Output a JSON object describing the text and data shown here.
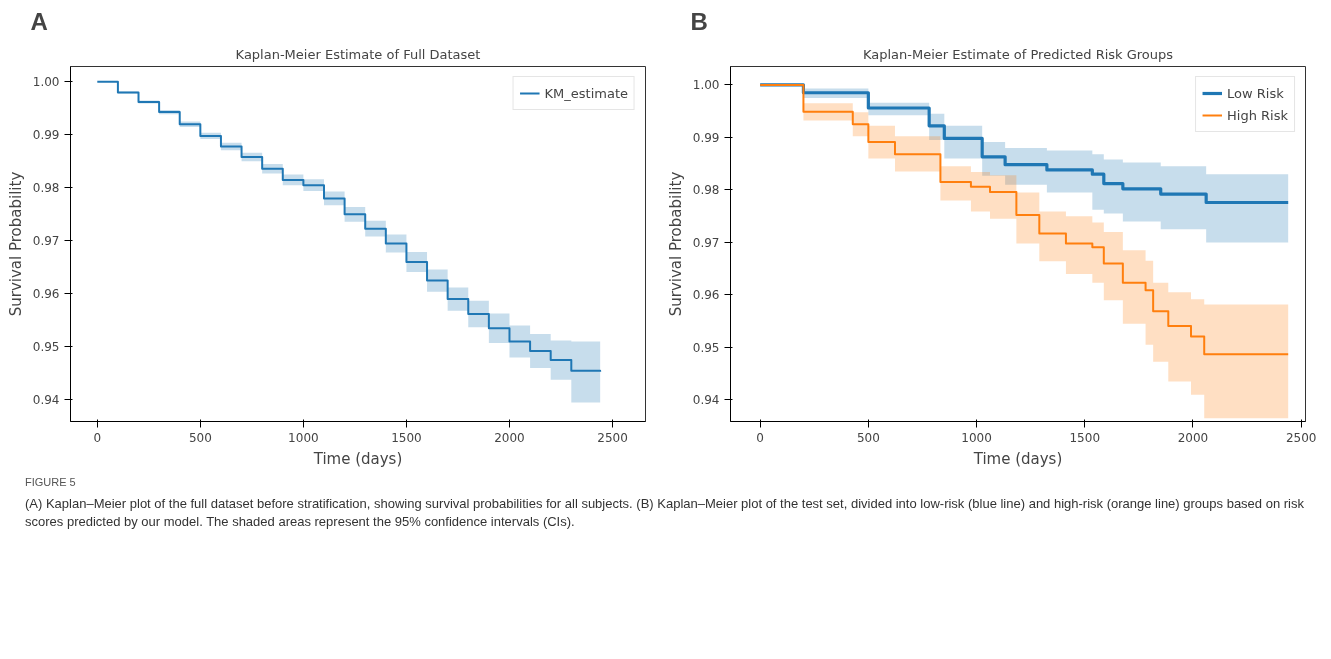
{
  "chart_data": [
    {
      "type": "step",
      "title": "Kaplan-Meier Estimate of Full Dataset",
      "xlabel": "Time (days)",
      "ylabel": "Survival Probability",
      "annotations": [
        "A"
      ],
      "legend": "top right",
      "xlim": [
        -130,
        2660
      ],
      "ylim": [
        0.9359,
        1.0029
      ],
      "xticks": [
        0,
        500,
        1000,
        1500,
        2000,
        2500
      ],
      "yticks": [
        0.94,
        0.95,
        0.96,
        0.97,
        0.98,
        0.99,
        {
          "value": 1.0,
          "label": "1.00"
        }
      ],
      "series": [
        {
          "name": "KM_estimate",
          "color": "#1f77b4",
          "x": [
            0,
            100,
            200,
            300,
            400,
            500,
            600,
            700,
            800,
            900,
            1000,
            1100,
            1200,
            1300,
            1400,
            1500,
            1600,
            1700,
            1800,
            1900,
            2000,
            2100,
            2200,
            2300,
            2440
          ],
          "values": [
            1.0,
            0.998,
            0.9962,
            0.9943,
            0.992,
            0.9898,
            0.9878,
            0.9858,
            0.9836,
            0.9815,
            0.9805,
            0.978,
            0.975,
            0.9723,
            0.9695,
            0.966,
            0.9625,
            0.959,
            0.9562,
            0.9535,
            0.951,
            0.9492,
            0.9475,
            0.9455,
            0.9453
          ],
          "lower": [
            1.0,
            0.9978,
            0.9959,
            0.9939,
            0.9915,
            0.9892,
            0.9871,
            0.985,
            0.9827,
            0.9805,
            0.9794,
            0.9767,
            0.9736,
            0.9708,
            0.9678,
            0.9641,
            0.9604,
            0.9568,
            0.9537,
            0.9507,
            0.948,
            0.946,
            0.9438,
            0.9395,
            0.939
          ],
          "upper": [
            1.0,
            0.9982,
            0.9965,
            0.9947,
            0.9925,
            0.9904,
            0.9885,
            0.9866,
            0.9845,
            0.9825,
            0.9816,
            0.9793,
            0.9764,
            0.9738,
            0.9712,
            0.9679,
            0.9646,
            0.9612,
            0.9587,
            0.9563,
            0.954,
            0.9524,
            0.9512,
            0.951,
            0.951
          ]
        }
      ]
    },
    {
      "type": "step",
      "title": "Kaplan-Meier Estimate of Predicted Risk Groups",
      "xlabel": "Time (days)",
      "ylabel": "Survival Probability",
      "annotations": [
        "B",
        "FIGURE 5",
        "(A) Kaplan–Meier plot of the full dataset before stratification, showing survival probabilities for all subjects. (B) Kaplan–Meier plot of the test set, divided into low-risk (blue line) and high-risk (orange line) groups based on risk scores predicted by our model. The shaded areas represent the 95% confidence intervals (CIs)."
      ],
      "legend": "top right",
      "xlim": [
        -137,
        2520
      ],
      "ylim": [
        0.9359,
        1.0035
      ],
      "xticks": [
        0,
        500,
        1000,
        1500,
        2000,
        2500
      ],
      "yticks": [
        0.94,
        0.95,
        0.96,
        0.97,
        0.98,
        0.99,
        {
          "value": 1.0,
          "label": "1.00"
        }
      ],
      "series": [
        {
          "name": "Low Risk",
          "color": "#1f77b4",
          "x": [
            0,
            200,
            500,
            781,
            851,
            1026,
            1132,
            1325,
            1535,
            1588,
            1676,
            1851,
            2061,
            2440
          ],
          "values": [
            1.0,
            0.9985,
            0.9956,
            0.9922,
            0.9898,
            0.9863,
            0.9848,
            0.9838,
            0.983,
            0.9812,
            0.9802,
            0.9792,
            0.9776,
            0.9776
          ],
          "lower": [
            1.0,
            0.9975,
            0.9942,
            0.9895,
            0.986,
            0.9827,
            0.981,
            0.9795,
            0.9762,
            0.9755,
            0.974,
            0.9725,
            0.97,
            0.97
          ],
          "upper": [
            1.0,
            0.9993,
            0.9966,
            0.9945,
            0.9922,
            0.9891,
            0.988,
            0.9875,
            0.9868,
            0.9858,
            0.9852,
            0.9845,
            0.983,
            0.983
          ]
        },
        {
          "name": "High Risk",
          "color": "#ff7f0e",
          "x": [
            0,
            200,
            428,
            500,
            623,
            833,
            974,
            1062,
            1184,
            1290,
            1413,
            1535,
            1588,
            1676,
            1781,
            1816,
            1886,
            1991,
            2052,
            2440
          ],
          "values": [
            1.0,
            0.9949,
            0.9925,
            0.9891,
            0.9868,
            0.9815,
            0.9806,
            0.9796,
            0.9752,
            0.9717,
            0.9698,
            0.9691,
            0.966,
            0.9623,
            0.9609,
            0.9569,
            0.9541,
            0.9521,
            0.9487,
            0.9487
          ],
          "lower": [
            1.0,
            0.9932,
            0.9902,
            0.986,
            0.9835,
            0.978,
            0.9759,
            0.9745,
            0.9698,
            0.9664,
            0.964,
            0.9623,
            0.959,
            0.9545,
            0.9505,
            0.9473,
            0.9435,
            0.941,
            0.9365,
            0.9365
          ],
          "upper": [
            1.0,
            0.9965,
            0.9948,
            0.9922,
            0.9902,
            0.9845,
            0.9834,
            0.9828,
            0.9795,
            0.9759,
            0.975,
            0.9738,
            0.972,
            0.9685,
            0.9665,
            0.9623,
            0.9605,
            0.9592,
            0.9582,
            0.9582
          ]
        }
      ]
    }
  ]
}
